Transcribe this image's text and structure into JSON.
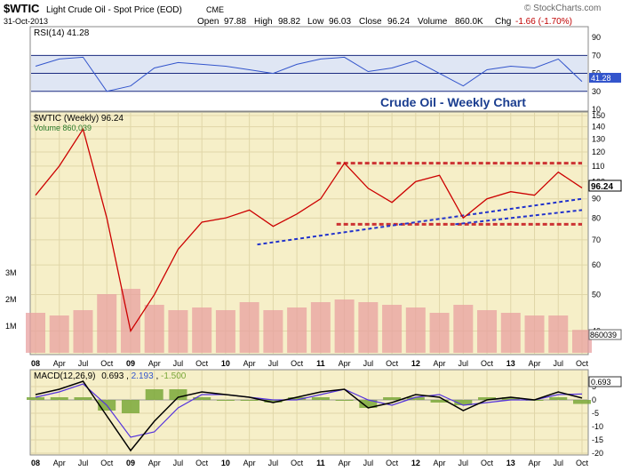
{
  "header": {
    "symbol": "$WTIC",
    "name": "Light Crude Oil - Spot Price (EOD)",
    "exchange": "CME",
    "date": "31-Oct-2013",
    "open_label": "Open",
    "open": "97.88",
    "high_label": "High",
    "high": "98.82",
    "low_label": "Low",
    "low": "96.03",
    "close_label": "Close",
    "close": "96.24",
    "volume_label": "Volume",
    "volume": "860.0K",
    "chg_label": "Chg",
    "chg": "-1.66 (-1.70%)",
    "watermark": "© StockCharts.com"
  },
  "colors": {
    "panel_bg": "#f6efc8",
    "rsi_bg": "#dfe6f4",
    "price_line": "#cc0000",
    "volume_bar": "#e8a0a0",
    "rsi_line": "#3355cc",
    "support_resistance": "#cc3333",
    "trendline": "#2233cc",
    "macd_line": "#000000",
    "signal_line": "#5533dd",
    "histogram": "#7aa83a"
  },
  "chart_data": [
    {
      "type": "line",
      "panel": "rsi",
      "label": "RSI(14) 41.28",
      "current_value": "41.28",
      "ylim": [
        10,
        100
      ],
      "yticks": [
        "90",
        "70",
        "50",
        "30",
        "10"
      ],
      "reference_lines": [
        70,
        50,
        30
      ],
      "x": [
        "Jan 08",
        "Apr 08",
        "Jul 08",
        "Oct 08",
        "Jan 09",
        "Apr 09",
        "Jul 09",
        "Oct 09",
        "Jan 10",
        "Apr 10",
        "Jul 10",
        "Oct 10",
        "Jan 11",
        "Apr 11",
        "Jul 11",
        "Oct 11",
        "Jan 12",
        "Apr 12",
        "Jul 12",
        "Oct 12",
        "Jan 13",
        "Apr 13",
        "Jul 13",
        "Oct 13"
      ],
      "values": [
        58,
        66,
        68,
        30,
        36,
        56,
        62,
        60,
        58,
        54,
        50,
        60,
        66,
        68,
        52,
        56,
        64,
        50,
        36,
        54,
        58,
        56,
        66,
        41
      ]
    },
    {
      "type": "line",
      "panel": "price",
      "label": "$WTIC (Weekly) 96.24",
      "volume_label": "Volume 860,039",
      "annotation": "Crude Oil - Weekly Chart",
      "current_value": "96.24",
      "ylim": [
        35,
        150
      ],
      "log_scale": true,
      "yticks": [
        "150",
        "140",
        "130",
        "120",
        "110",
        "100",
        "90",
        "80",
        "70",
        "60",
        "50",
        "40"
      ],
      "x": [
        "Jan 08",
        "Apr 08",
        "Jul 08",
        "Oct 08",
        "Jan 09",
        "Apr 09",
        "Jul 09",
        "Oct 09",
        "Jan 10",
        "Apr 10",
        "Jul 10",
        "Oct 10",
        "Jan 11",
        "Apr 11",
        "Jul 11",
        "Oct 11",
        "Jan 12",
        "Apr 12",
        "Jul 12",
        "Oct 12",
        "Jan 13",
        "Apr 13",
        "Jul 13",
        "Oct 13"
      ],
      "values": [
        92,
        110,
        138,
        80,
        40,
        50,
        66,
        78,
        80,
        84,
        76,
        82,
        90,
        112,
        96,
        88,
        100,
        104,
        80,
        90,
        94,
        92,
        106,
        96.24
      ],
      "volume_axis": [
        "3M",
        "2M",
        "1M"
      ],
      "volume": [
        1.5,
        1.4,
        1.6,
        2.2,
        2.4,
        1.8,
        1.6,
        1.7,
        1.6,
        1.9,
        1.6,
        1.7,
        1.9,
        2.0,
        1.9,
        1.8,
        1.7,
        1.5,
        1.8,
        1.6,
        1.5,
        1.4,
        1.4,
        0.86
      ],
      "volume_current": "860039",
      "horizontal_lines": [
        112,
        77
      ],
      "trendlines": [
        {
          "from": [
            "May 10",
            68
          ],
          "to": [
            "Oct 13",
            90
          ]
        },
        {
          "from": [
            "Jun 12",
            77
          ],
          "to": [
            "Oct 13",
            84
          ]
        }
      ]
    },
    {
      "type": "line",
      "panel": "macd",
      "label": "MACD(12,26,9) 0.693, 2.193, -1.500",
      "label_parts": [
        "MACD(12,26,9)",
        "0.693",
        "2.193",
        "-1.500"
      ],
      "current_value": "0.693",
      "ylim": [
        -20,
        10
      ],
      "yticks": [
        "5",
        "0",
        "-5",
        "-10",
        "-15",
        "-20"
      ],
      "x": [
        "Jan 08",
        "Apr 08",
        "Jul 08",
        "Oct 08",
        "Jan 09",
        "Apr 09",
        "Jul 09",
        "Oct 09",
        "Jan 10",
        "Apr 10",
        "Jul 10",
        "Oct 10",
        "Jan 11",
        "Apr 11",
        "Jul 11",
        "Oct 11",
        "Jan 12",
        "Apr 12",
        "Jul 12",
        "Oct 12",
        "Jan 13",
        "Apr 13",
        "Jul 13",
        "Oct 13"
      ],
      "series": [
        {
          "name": "MACD",
          "values": [
            2,
            4,
            7,
            -6,
            -19,
            -8,
            1,
            3,
            2,
            1,
            -1,
            1,
            3,
            4,
            -3,
            -1,
            2,
            1,
            -4,
            0,
            1,
            0,
            3,
            0.693
          ]
        },
        {
          "name": "Signal",
          "values": [
            1,
            3,
            6,
            -2,
            -14,
            -12,
            -3,
            2,
            2,
            1,
            0,
            0,
            2,
            4,
            0,
            -2,
            1,
            2,
            -2,
            -1,
            0,
            0,
            2,
            2.193
          ]
        }
      ]
    }
  ],
  "x_axis": {
    "labels": [
      "08",
      "Apr",
      "Jul",
      "Oct",
      "09",
      "Apr",
      "Jul",
      "Oct",
      "10",
      "Apr",
      "Jul",
      "Oct",
      "11",
      "Apr",
      "Jul",
      "Oct",
      "12",
      "Apr",
      "Jul",
      "Oct",
      "13",
      "Apr",
      "Jul",
      "Oct"
    ],
    "year_labels": [
      "08",
      "09",
      "10",
      "11",
      "12",
      "13"
    ]
  }
}
